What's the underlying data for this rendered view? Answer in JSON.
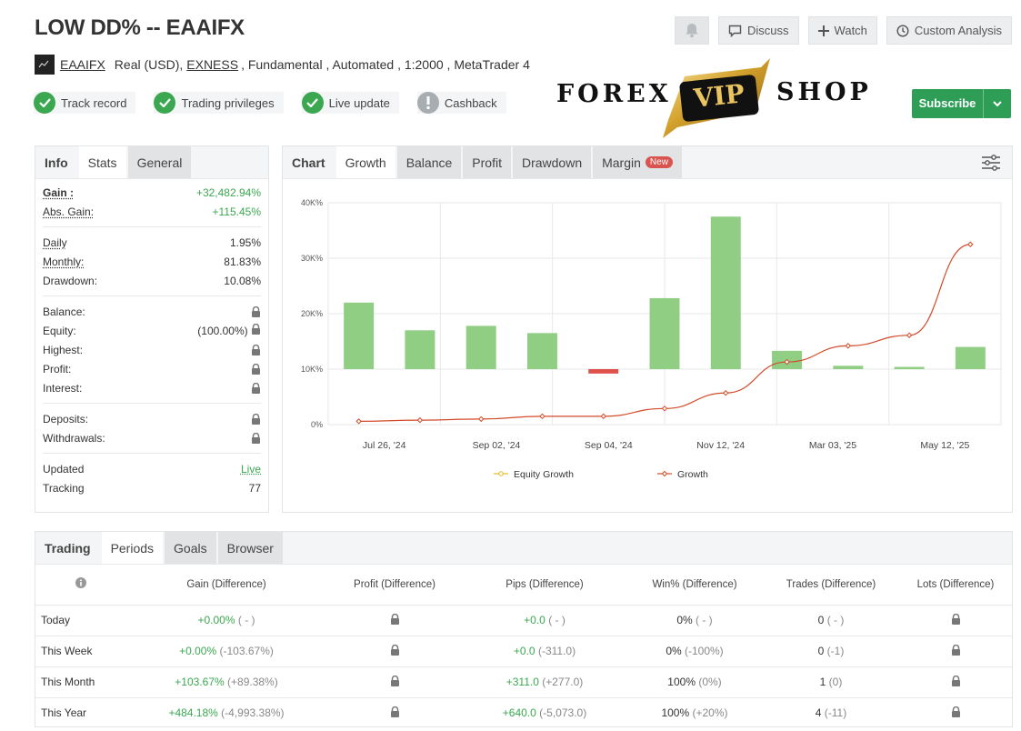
{
  "header": {
    "title": "LOW DD% -- EAAIFX",
    "actions": {
      "discuss": "Discuss",
      "watch": "Watch",
      "custom": "Custom Analysis"
    }
  },
  "account": {
    "system_name": "EAAIFX",
    "account_type": "Real (USD),",
    "broker": "EXNESS",
    "details": ", Fundamental , Automated , 1:2000 , MetaTrader 4"
  },
  "badges": [
    "Track record",
    "Trading privileges",
    "Live update",
    "Cashback"
  ],
  "logo": {
    "left": "FOREX",
    "center": "VIP",
    "right": "SHOP"
  },
  "subscribe": "Subscribe",
  "info_tabs": {
    "header": "Info",
    "tabs": [
      "Stats",
      "General"
    ]
  },
  "info": {
    "gain_label": "Gain :",
    "gain_value": "+32,482.94%",
    "abs_gain_label": "Abs. Gain:",
    "abs_gain_value": "+115.45%",
    "daily_label": "Daily",
    "daily_value": "1.95%",
    "monthly_label": "Monthly:",
    "monthly_value": "81.83%",
    "drawdown_label": "Drawdown:",
    "drawdown_value": "10.08%",
    "balance_label": "Balance:",
    "equity_label": "Equity:",
    "equity_value": "(100.00%)",
    "highest_label": "Highest:",
    "profit_label": "Profit:",
    "interest_label": "Interest:",
    "deposits_label": "Deposits:",
    "withdrawals_label": "Withdrawals:",
    "updated_label": "Updated",
    "updated_value": "Live",
    "tracking_label": "Tracking",
    "tracking_value": "77"
  },
  "chart_tabs": {
    "header": "Chart",
    "tabs": [
      "Growth",
      "Balance",
      "Profit",
      "Drawdown",
      "Margin"
    ],
    "new_badge": "New"
  },
  "chart_data": {
    "type": "bar",
    "x_ticks": [
      "Jul 26, '24",
      "Sep 02, '24",
      "Sep 04, '24",
      "Nov 12, '24",
      "Mar 03, '25",
      "May 12, '25"
    ],
    "y_ticks": [
      "0%",
      "10K%",
      "20K%",
      "30K%",
      "40K%"
    ],
    "ylim": [
      0,
      40000
    ],
    "bar_baseline": 10000,
    "bars": [
      22000,
      17000,
      17800,
      16500,
      9200,
      22800,
      37500,
      13300,
      10600,
      10400,
      14000
    ],
    "bar_colors": [
      "#8fce83",
      "#8fce83",
      "#8fce83",
      "#8fce83",
      "#e0504c",
      "#8fce83",
      "#8fce83",
      "#8fce83",
      "#8fce83",
      "#8fce83",
      "#8fce83"
    ],
    "series": [
      {
        "name": "Equity Growth",
        "color": "#e8b923",
        "values": []
      },
      {
        "name": "Growth",
        "color": "#d24b2a",
        "values": [
          600,
          800,
          1000,
          1500,
          1500,
          2900,
          5700,
          11300,
          14200,
          16100,
          32500
        ]
      }
    ],
    "grid": true,
    "legend": "bottom"
  },
  "trading_tabs": {
    "header": "Trading",
    "tabs": [
      "Periods",
      "Goals",
      "Browser"
    ]
  },
  "table": {
    "columns": [
      "Gain (Difference)",
      "Profit (Difference)",
      "Pips (Difference)",
      "Win% (Difference)",
      "Trades (Difference)",
      "Lots (Difference)"
    ],
    "rows": [
      {
        "period": "Today",
        "gain": "+0.00%",
        "gain_diff": "( - )",
        "pips": "+0.0",
        "pips_diff": "( - )",
        "win": "0%",
        "win_diff": "( - )",
        "trades": "0",
        "trades_diff": "( - )"
      },
      {
        "period": "This Week",
        "gain": "+0.00%",
        "gain_diff": "(-103.67%)",
        "pips": "+0.0",
        "pips_diff": "(-311.0)",
        "win": "0%",
        "win_diff": "(-100%)",
        "trades": "0",
        "trades_diff": "(-1)"
      },
      {
        "period": "This Month",
        "gain": "+103.67%",
        "gain_diff": "(+89.38%)",
        "pips": "+311.0",
        "pips_diff": "(+277.0)",
        "win": "100%",
        "win_diff": "(0%)",
        "trades": "1",
        "trades_diff": "(0)"
      },
      {
        "period": "This Year",
        "gain": "+484.18%",
        "gain_diff": "(-4,993.38%)",
        "pips": "+640.0",
        "pips_diff": "(-5,073.0)",
        "win": "100%",
        "win_diff": "(+20%)",
        "trades": "4",
        "trades_diff": "(-11)"
      }
    ]
  }
}
